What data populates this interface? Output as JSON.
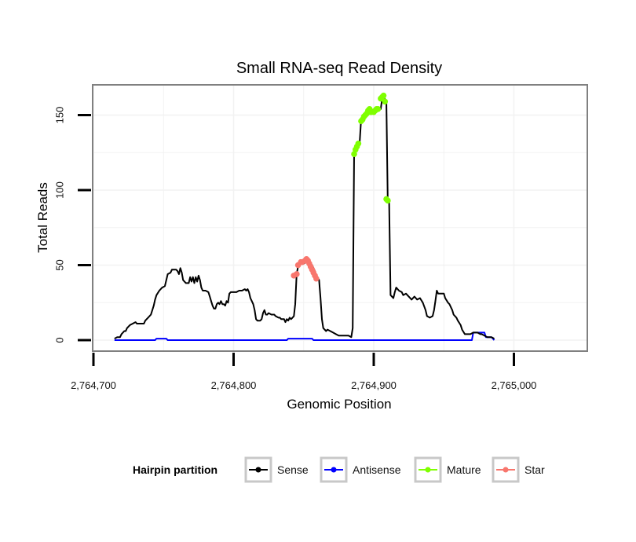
{
  "chart_data": {
    "type": "line",
    "title": "Small RNA-seq Read Density",
    "xlabel": "Genomic Position",
    "ylabel": "Total Reads",
    "xlim": [
      2764700,
      2765045
    ],
    "ylim": [
      -8,
      170
    ],
    "x_ticks": [
      2764700,
      2764800,
      2764900,
      2765000
    ],
    "x_tick_labels": [
      "2,764,700",
      "2,764,800",
      "2,764,900",
      "2,765,000"
    ],
    "y_ticks": [
      0,
      50,
      100,
      150
    ],
    "y_tick_labels": [
      "0",
      "50",
      "100",
      "150"
    ],
    "grid": true,
    "legend": {
      "title": "Hairpin partition",
      "position": "bottom",
      "entries": [
        {
          "name": "Sense",
          "color": "#000000"
        },
        {
          "name": "Antisense",
          "color": "#0000FF"
        },
        {
          "name": "Mature",
          "color": "#7FFF00"
        },
        {
          "name": "Star",
          "color": "#F8766D"
        }
      ]
    },
    "series": [
      {
        "name": "Sense",
        "color": "#000000",
        "style": "line",
        "points": [
          [
            2764715,
            1
          ],
          [
            2764717,
            2
          ],
          [
            2764719,
            2
          ],
          [
            2764720,
            4
          ],
          [
            2764722,
            6
          ],
          [
            2764723,
            6
          ],
          [
            2764724,
            8
          ],
          [
            2764726,
            10
          ],
          [
            2764728,
            11
          ],
          [
            2764730,
            12
          ],
          [
            2764731,
            11
          ],
          [
            2764733,
            11
          ],
          [
            2764736,
            11
          ],
          [
            2764737,
            13
          ],
          [
            2764739,
            15
          ],
          [
            2764741,
            17
          ],
          [
            2764742,
            20
          ],
          [
            2764743,
            23
          ],
          [
            2764744,
            27
          ],
          [
            2764745,
            30
          ],
          [
            2764747,
            33
          ],
          [
            2764749,
            35
          ],
          [
            2764751,
            36
          ],
          [
            2764752,
            40
          ],
          [
            2764753,
            44
          ],
          [
            2764755,
            45
          ],
          [
            2764756,
            47
          ],
          [
            2764759,
            47
          ],
          [
            2764760,
            46
          ],
          [
            2764761,
            44
          ],
          [
            2764762,
            48
          ],
          [
            2764763,
            45
          ],
          [
            2764764,
            40
          ],
          [
            2764766,
            38
          ],
          [
            2764768,
            38
          ],
          [
            2764769,
            42
          ],
          [
            2764770,
            39
          ],
          [
            2764771,
            42
          ],
          [
            2764772,
            38
          ],
          [
            2764773,
            42
          ],
          [
            2764774,
            39
          ],
          [
            2764775,
            43
          ],
          [
            2764776,
            40
          ],
          [
            2764777,
            35
          ],
          [
            2764778,
            33
          ],
          [
            2764780,
            33
          ],
          [
            2764782,
            32
          ],
          [
            2764783,
            29
          ],
          [
            2764784,
            26
          ],
          [
            2764785,
            23
          ],
          [
            2764786,
            21
          ],
          [
            2764787,
            21
          ],
          [
            2764788,
            24
          ],
          [
            2764789,
            25
          ],
          [
            2764790,
            24
          ],
          [
            2764791,
            26
          ],
          [
            2764792,
            24
          ],
          [
            2764793,
            24
          ],
          [
            2764794,
            23
          ],
          [
            2764795,
            26
          ],
          [
            2764796,
            25
          ],
          [
            2764797,
            31
          ],
          [
            2764798,
            32
          ],
          [
            2764800,
            32
          ],
          [
            2764802,
            32
          ],
          [
            2764804,
            33
          ],
          [
            2764806,
            33
          ],
          [
            2764808,
            34
          ],
          [
            2764809,
            33
          ],
          [
            2764810,
            34
          ],
          [
            2764811,
            32
          ],
          [
            2764812,
            28
          ],
          [
            2764813,
            26
          ],
          [
            2764814,
            24
          ],
          [
            2764815,
            20
          ],
          [
            2764816,
            14
          ],
          [
            2764817,
            13
          ],
          [
            2764819,
            13
          ],
          [
            2764820,
            14
          ],
          [
            2764821,
            18
          ],
          [
            2764822,
            20
          ],
          [
            2764823,
            17
          ],
          [
            2764824,
            17
          ],
          [
            2764825,
            18
          ],
          [
            2764827,
            17
          ],
          [
            2764829,
            17
          ],
          [
            2764830,
            16
          ],
          [
            2764832,
            15
          ],
          [
            2764833,
            15
          ],
          [
            2764834,
            14
          ],
          [
            2764836,
            14
          ],
          [
            2764837,
            12
          ],
          [
            2764838,
            14
          ],
          [
            2764839,
            13
          ],
          [
            2764840,
            15
          ],
          [
            2764841,
            14
          ],
          [
            2764842,
            15
          ],
          [
            2764843,
            16
          ],
          [
            2764844,
            24
          ],
          [
            2764845,
            44
          ],
          [
            2764846,
            49
          ],
          [
            2764848,
            51
          ],
          [
            2764850,
            51
          ],
          [
            2764852,
            52
          ],
          [
            2764854,
            52
          ],
          [
            2764856,
            50
          ],
          [
            2764858,
            46
          ],
          [
            2764859,
            43
          ],
          [
            2764860,
            42
          ],
          [
            2764861,
            40
          ],
          [
            2764862,
            28
          ],
          [
            2764863,
            14
          ],
          [
            2764864,
            8
          ],
          [
            2764866,
            6
          ],
          [
            2764867,
            7
          ],
          [
            2764869,
            6
          ],
          [
            2764871,
            5
          ],
          [
            2764873,
            4
          ],
          [
            2764875,
            3
          ],
          [
            2764880,
            3
          ],
          [
            2764882,
            3
          ],
          [
            2764884,
            2
          ],
          [
            2764885,
            8
          ],
          [
            2764886,
            124
          ],
          [
            2764887,
            126
          ],
          [
            2764889,
            130
          ],
          [
            2764890,
            132
          ],
          [
            2764891,
            147
          ],
          [
            2764893,
            148
          ],
          [
            2764895,
            150
          ],
          [
            2764896,
            152
          ],
          [
            2764898,
            154
          ],
          [
            2764900,
            153
          ],
          [
            2764902,
            152
          ],
          [
            2764903,
            154
          ],
          [
            2764905,
            154
          ],
          [
            2764906,
            161
          ],
          [
            2764907,
            163
          ],
          [
            2764909,
            158
          ],
          [
            2764910,
            94
          ],
          [
            2764911,
            92
          ],
          [
            2764912,
            30
          ],
          [
            2764914,
            28
          ],
          [
            2764915,
            32
          ],
          [
            2764916,
            35
          ],
          [
            2764918,
            33
          ],
          [
            2764920,
            32
          ],
          [
            2764921,
            30
          ],
          [
            2764923,
            31
          ],
          [
            2764925,
            29
          ],
          [
            2764927,
            27
          ],
          [
            2764929,
            29
          ],
          [
            2764931,
            27
          ],
          [
            2764933,
            28
          ],
          [
            2764935,
            25
          ],
          [
            2764937,
            20
          ],
          [
            2764938,
            16
          ],
          [
            2764940,
            15
          ],
          [
            2764942,
            16
          ],
          [
            2764943,
            20
          ],
          [
            2764944,
            26
          ],
          [
            2764945,
            33
          ],
          [
            2764946,
            31
          ],
          [
            2764948,
            31
          ],
          [
            2764950,
            31
          ],
          [
            2764951,
            28
          ],
          [
            2764953,
            25
          ],
          [
            2764954,
            24
          ],
          [
            2764956,
            20
          ],
          [
            2764957,
            17
          ],
          [
            2764959,
            15
          ],
          [
            2764960,
            13
          ],
          [
            2764962,
            10
          ],
          [
            2764963,
            7
          ],
          [
            2764965,
            4
          ],
          [
            2764967,
            4
          ],
          [
            2764969,
            4
          ],
          [
            2764971,
            5
          ],
          [
            2764974,
            5
          ],
          [
            2764976,
            4
          ],
          [
            2764977,
            4
          ],
          [
            2764979,
            3
          ],
          [
            2764981,
            2
          ],
          [
            2764984,
            2
          ],
          [
            2764986,
            1
          ]
        ]
      },
      {
        "name": "Antisense",
        "color": "#0000FF",
        "style": "line",
        "points": [
          [
            2764715,
            0
          ],
          [
            2764744,
            0
          ],
          [
            2764745,
            1
          ],
          [
            2764752,
            1
          ],
          [
            2764753,
            0
          ],
          [
            2764838,
            0
          ],
          [
            2764839,
            1
          ],
          [
            2764856,
            1
          ],
          [
            2764857,
            0
          ],
          [
            2764970,
            0
          ],
          [
            2764971,
            5
          ],
          [
            2764979,
            5
          ],
          [
            2764980,
            2
          ],
          [
            2764984,
            2
          ],
          [
            2764986,
            0
          ]
        ]
      },
      {
        "name": "Mature",
        "color": "#7FFF00",
        "style": "points",
        "points": [
          [
            2764886,
            124
          ],
          [
            2764887,
            127
          ],
          [
            2764888,
            129
          ],
          [
            2764889,
            131
          ],
          [
            2764891,
            146
          ],
          [
            2764892,
            147
          ],
          [
            2764893,
            149
          ],
          [
            2764894,
            150
          ],
          [
            2764895,
            151
          ],
          [
            2764896,
            153
          ],
          [
            2764897,
            154
          ],
          [
            2764898,
            152
          ],
          [
            2764900,
            152
          ],
          [
            2764901,
            153
          ],
          [
            2764902,
            154
          ],
          [
            2764903,
            154
          ],
          [
            2764905,
            161
          ],
          [
            2764906,
            162
          ],
          [
            2764907,
            163
          ],
          [
            2764908,
            159
          ],
          [
            2764909,
            94
          ],
          [
            2764910,
            93
          ]
        ]
      },
      {
        "name": "Star",
        "color": "#F8766D",
        "style": "points",
        "points": [
          [
            2764843,
            43
          ],
          [
            2764845,
            44
          ],
          [
            2764846,
            50
          ],
          [
            2764848,
            52
          ],
          [
            2764849,
            52
          ],
          [
            2764851,
            53
          ],
          [
            2764852,
            54
          ],
          [
            2764853,
            53
          ],
          [
            2764854,
            51
          ],
          [
            2764855,
            49
          ],
          [
            2764856,
            47
          ],
          [
            2764857,
            45
          ],
          [
            2764858,
            43
          ],
          [
            2764859,
            41
          ]
        ]
      }
    ]
  }
}
